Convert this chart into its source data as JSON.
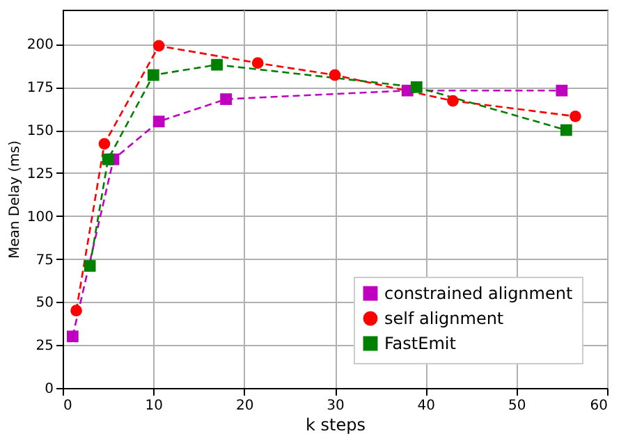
{
  "chart_data": {
    "type": "line",
    "xlabel": "k steps",
    "ylabel": "Mean Delay (ms)",
    "xlim": [
      0,
      60
    ],
    "ylim": [
      0,
      220
    ],
    "xticks": [
      0,
      10,
      20,
      30,
      40,
      50,
      60
    ],
    "yticks": [
      0,
      25,
      50,
      75,
      100,
      125,
      150,
      175,
      200
    ],
    "grid": true,
    "legend": "bottom right",
    "line_style": "dashed",
    "series": [
      {
        "name": "constrained alignment",
        "color": "#bf00bf",
        "marker": "square",
        "x": [
          1.1,
          5.6,
          10.6,
          18,
          38,
          55
        ],
        "values": [
          30,
          133,
          155,
          168,
          173,
          173
        ]
      },
      {
        "name": "self alignment",
        "color": "#ff0000",
        "marker": "circle",
        "x": [
          1.5,
          4.6,
          10.6,
          21.5,
          30,
          43,
          56.5
        ],
        "values": [
          45,
          142,
          199,
          189,
          182,
          167,
          158
        ]
      },
      {
        "name": "FastEmit",
        "color": "#008000",
        "marker": "square",
        "x": [
          3,
          5,
          10,
          17,
          39,
          55.5
        ],
        "values": [
          71,
          133,
          182,
          188,
          175,
          150
        ]
      }
    ]
  }
}
